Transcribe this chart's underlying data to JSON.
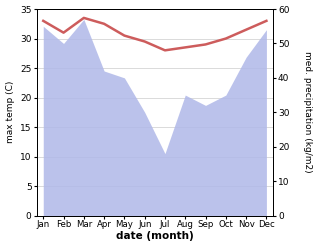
{
  "months": [
    "Jan",
    "Feb",
    "Mar",
    "Apr",
    "May",
    "Jun",
    "Jul",
    "Aug",
    "Sep",
    "Oct",
    "Nov",
    "Dec"
  ],
  "month_indices": [
    0,
    1,
    2,
    3,
    4,
    5,
    6,
    7,
    8,
    9,
    10,
    11
  ],
  "temperature": [
    33.0,
    31.0,
    33.5,
    32.5,
    30.5,
    29.5,
    28.0,
    28.5,
    29.0,
    30.0,
    31.5,
    33.0
  ],
  "precipitation": [
    55,
    50,
    57,
    42,
    40,
    30,
    18,
    35,
    32,
    35,
    46,
    54
  ],
  "temp_color": "#cd5c5c",
  "precip_fill_color": "#b0b8e8",
  "temp_ylim": [
    0,
    35
  ],
  "precip_ylim": [
    0,
    60
  ],
  "temp_yticks": [
    0,
    5,
    10,
    15,
    20,
    25,
    30,
    35
  ],
  "precip_yticks": [
    0,
    10,
    20,
    30,
    40,
    50,
    60
  ],
  "xlabel": "date (month)",
  "ylabel_left": "max temp (C)",
  "ylabel_right": "med. precipitation (kg/m2)",
  "bg_color": "#ffffff"
}
